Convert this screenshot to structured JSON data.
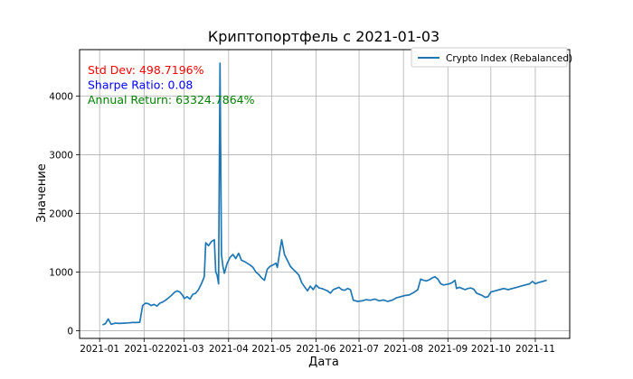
{
  "chart_data": {
    "type": "line",
    "title": "Криптопортфель с 2021-01-03",
    "xlabel": "Дата",
    "ylabel": "Значение",
    "x_ticks": [
      "2021-01",
      "2021-02",
      "2021-03",
      "2021-04",
      "2021-05",
      "2021-06",
      "2021-07",
      "2021-08",
      "2021-09",
      "2021-10",
      "2021-11"
    ],
    "y_ticks": [
      0,
      1000,
      2000,
      3000,
      4000
    ],
    "xlim": [
      "2020-12-18",
      "2021-11-25"
    ],
    "ylim": [
      -130,
      4790
    ],
    "grid": true,
    "legend_position": "top-right",
    "annotations": [
      {
        "text": "Std Dev: 498.7196%",
        "color": "#ff0000"
      },
      {
        "text": "Sharpe Ratio: 0.08",
        "color": "#0000ff"
      },
      {
        "text": "Annual Return: 63324.7864%",
        "color": "#008000"
      }
    ],
    "series": [
      {
        "name": "Crypto Index (Rebalanced)",
        "color": "#1f77b4",
        "points": [
          [
            "2021-01-03",
            100
          ],
          [
            "2021-01-05",
            120
          ],
          [
            "2021-01-07",
            200
          ],
          [
            "2021-01-09",
            110
          ],
          [
            "2021-01-12",
            130
          ],
          [
            "2021-01-15",
            125
          ],
          [
            "2021-01-18",
            130
          ],
          [
            "2021-01-21",
            135
          ],
          [
            "2021-01-24",
            140
          ],
          [
            "2021-01-27",
            140
          ],
          [
            "2021-01-29",
            145
          ],
          [
            "2021-01-31",
            430
          ],
          [
            "2021-02-02",
            470
          ],
          [
            "2021-02-04",
            460
          ],
          [
            "2021-02-06",
            430
          ],
          [
            "2021-02-08",
            450
          ],
          [
            "2021-02-10",
            420
          ],
          [
            "2021-02-12",
            470
          ],
          [
            "2021-02-14",
            490
          ],
          [
            "2021-02-16",
            520
          ],
          [
            "2021-02-18",
            560
          ],
          [
            "2021-02-20",
            600
          ],
          [
            "2021-02-22",
            650
          ],
          [
            "2021-02-24",
            680
          ],
          [
            "2021-02-26",
            660
          ],
          [
            "2021-02-28",
            600
          ],
          [
            "2021-03-01",
            550
          ],
          [
            "2021-03-03",
            580
          ],
          [
            "2021-03-05",
            540
          ],
          [
            "2021-03-07",
            620
          ],
          [
            "2021-03-09",
            640
          ],
          [
            "2021-03-11",
            700
          ],
          [
            "2021-03-13",
            800
          ],
          [
            "2021-03-15",
            920
          ],
          [
            "2021-03-16",
            1500
          ],
          [
            "2021-03-18",
            1450
          ],
          [
            "2021-03-20",
            1520
          ],
          [
            "2021-03-22",
            1550
          ],
          [
            "2021-03-23",
            1000
          ],
          [
            "2021-03-24",
            950
          ],
          [
            "2021-03-25",
            800
          ],
          [
            "2021-03-26",
            4560
          ],
          [
            "2021-03-27",
            1300
          ],
          [
            "2021-03-28",
            1100
          ],
          [
            "2021-03-29",
            980
          ],
          [
            "2021-03-31",
            1150
          ],
          [
            "2021-04-02",
            1250
          ],
          [
            "2021-04-04",
            1300
          ],
          [
            "2021-04-06",
            1230
          ],
          [
            "2021-04-08",
            1320
          ],
          [
            "2021-04-10",
            1200
          ],
          [
            "2021-04-12",
            1180
          ],
          [
            "2021-04-14",
            1150
          ],
          [
            "2021-04-16",
            1120
          ],
          [
            "2021-04-18",
            1080
          ],
          [
            "2021-04-20",
            1000
          ],
          [
            "2021-04-22",
            960
          ],
          [
            "2021-04-24",
            900
          ],
          [
            "2021-04-26",
            860
          ],
          [
            "2021-04-28",
            1050
          ],
          [
            "2021-04-30",
            1100
          ],
          [
            "2021-05-02",
            1120
          ],
          [
            "2021-05-04",
            1150
          ],
          [
            "2021-05-05",
            1080
          ],
          [
            "2021-05-07",
            1400
          ],
          [
            "2021-05-08",
            1550
          ],
          [
            "2021-05-10",
            1300
          ],
          [
            "2021-05-12",
            1200
          ],
          [
            "2021-05-14",
            1100
          ],
          [
            "2021-05-16",
            1050
          ],
          [
            "2021-05-18",
            1000
          ],
          [
            "2021-05-20",
            950
          ],
          [
            "2021-05-22",
            820
          ],
          [
            "2021-05-24",
            750
          ],
          [
            "2021-05-26",
            680
          ],
          [
            "2021-05-28",
            760
          ],
          [
            "2021-05-30",
            700
          ],
          [
            "2021-06-01",
            780
          ],
          [
            "2021-06-03",
            730
          ],
          [
            "2021-06-05",
            720
          ],
          [
            "2021-06-07",
            700
          ],
          [
            "2021-06-09",
            680
          ],
          [
            "2021-06-11",
            640
          ],
          [
            "2021-06-13",
            700
          ],
          [
            "2021-06-15",
            720
          ],
          [
            "2021-06-17",
            740
          ],
          [
            "2021-06-19",
            700
          ],
          [
            "2021-06-21",
            690
          ],
          [
            "2021-06-23",
            720
          ],
          [
            "2021-06-25",
            700
          ],
          [
            "2021-06-27",
            520
          ],
          [
            "2021-06-30",
            500
          ],
          [
            "2021-07-03",
            510
          ],
          [
            "2021-07-06",
            530
          ],
          [
            "2021-07-09",
            520
          ],
          [
            "2021-07-12",
            540
          ],
          [
            "2021-07-15",
            510
          ],
          [
            "2021-07-18",
            525
          ],
          [
            "2021-07-21",
            500
          ],
          [
            "2021-07-24",
            520
          ],
          [
            "2021-07-27",
            560
          ],
          [
            "2021-07-30",
            580
          ],
          [
            "2021-08-02",
            600
          ],
          [
            "2021-08-05",
            610
          ],
          [
            "2021-08-08",
            650
          ],
          [
            "2021-08-11",
            700
          ],
          [
            "2021-08-13",
            880
          ],
          [
            "2021-08-15",
            860
          ],
          [
            "2021-08-17",
            850
          ],
          [
            "2021-08-19",
            870
          ],
          [
            "2021-08-21",
            900
          ],
          [
            "2021-08-23",
            920
          ],
          [
            "2021-08-25",
            880
          ],
          [
            "2021-08-27",
            800
          ],
          [
            "2021-08-29",
            780
          ],
          [
            "2021-08-31",
            790
          ],
          [
            "2021-09-02",
            800
          ],
          [
            "2021-09-04",
            820
          ],
          [
            "2021-09-06",
            860
          ],
          [
            "2021-09-07",
            720
          ],
          [
            "2021-09-09",
            740
          ],
          [
            "2021-09-11",
            720
          ],
          [
            "2021-09-13",
            700
          ],
          [
            "2021-09-15",
            720
          ],
          [
            "2021-09-17",
            730
          ],
          [
            "2021-09-19",
            710
          ],
          [
            "2021-09-21",
            640
          ],
          [
            "2021-09-23",
            620
          ],
          [
            "2021-09-25",
            600
          ],
          [
            "2021-09-27",
            570
          ],
          [
            "2021-09-29",
            580
          ],
          [
            "2021-10-01",
            660
          ],
          [
            "2021-10-04",
            680
          ],
          [
            "2021-10-07",
            700
          ],
          [
            "2021-10-10",
            720
          ],
          [
            "2021-10-13",
            700
          ],
          [
            "2021-10-16",
            720
          ],
          [
            "2021-10-19",
            740
          ],
          [
            "2021-10-22",
            760
          ],
          [
            "2021-10-25",
            780
          ],
          [
            "2021-10-28",
            800
          ],
          [
            "2021-10-30",
            840
          ],
          [
            "2021-11-01",
            800
          ],
          [
            "2021-11-03",
            820
          ],
          [
            "2021-11-06",
            840
          ],
          [
            "2021-11-09",
            860
          ]
        ]
      }
    ]
  }
}
